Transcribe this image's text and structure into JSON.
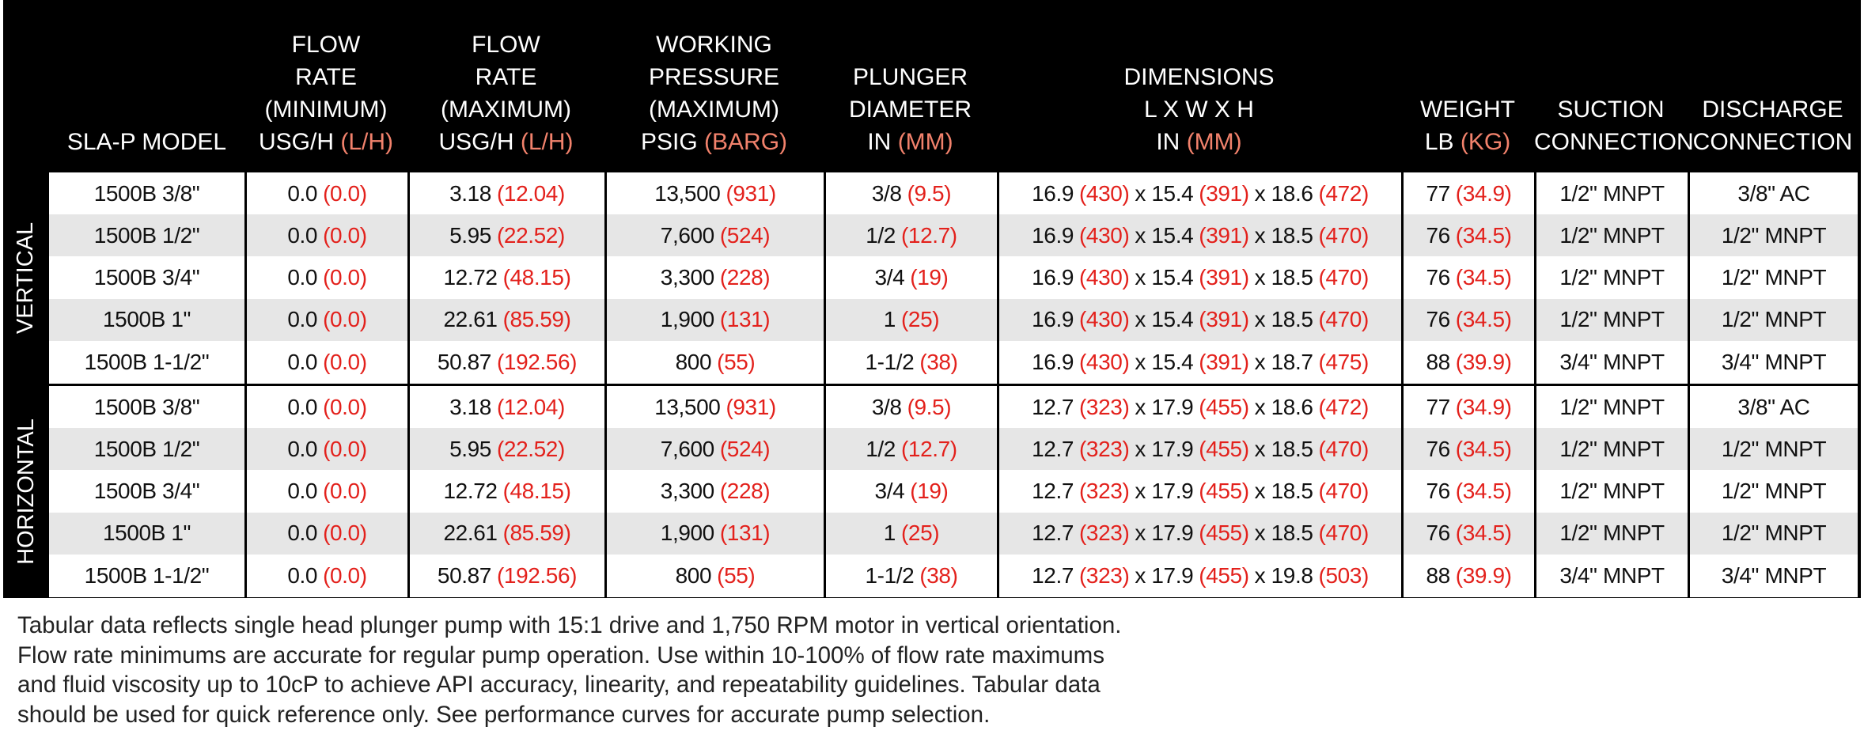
{
  "header": {
    "columns": [
      {
        "text": "SLA-P MODEL"
      },
      {
        "text": "FLOW\nRATE\n(MINIMUM)\nUSG/H",
        "unit": "(L/H)"
      },
      {
        "text": "FLOW\nRATE\n(MAXIMUM)\nUSG/H",
        "unit": "(L/H)"
      },
      {
        "text": "WORKING\nPRESSURE\n(MAXIMUM)\nPSIG",
        "unit": "(BARG)"
      },
      {
        "text": "PLUNGER\nDIAMETER\nIN",
        "unit": "(MM)"
      },
      {
        "text": "DIMENSIONS\nL X W X H\nIN",
        "unit": "(MM)"
      },
      {
        "text": "WEIGHT\nLB",
        "unit": "(KG)"
      },
      {
        "text": "SUCTION\nCONNECTION"
      },
      {
        "text": "DISCHARGE\nCONNECTION"
      }
    ]
  },
  "groups": [
    {
      "label": "VERTICAL",
      "rows": [
        [
          [
            "1500B 3/8\""
          ],
          [
            "0.0",
            "(0.0)"
          ],
          [
            "3.18",
            "(12.04)"
          ],
          [
            "13,500",
            "(931)"
          ],
          [
            "3/8",
            "(9.5)"
          ],
          [
            "16.9",
            "(430)",
            "x 15.4",
            "(391)",
            "x 18.6",
            "(472)"
          ],
          [
            "77",
            "(34.9)"
          ],
          [
            "1/2\" MNPT"
          ],
          [
            "3/8\" AC"
          ]
        ],
        [
          [
            "1500B 1/2\""
          ],
          [
            "0.0",
            "(0.0)"
          ],
          [
            "5.95",
            "(22.52)"
          ],
          [
            "7,600",
            "(524)"
          ],
          [
            "1/2",
            "(12.7)"
          ],
          [
            "16.9",
            "(430)",
            "x 15.4",
            "(391)",
            "x 18.5",
            "(470)"
          ],
          [
            "76",
            "(34.5)"
          ],
          [
            "1/2\" MNPT"
          ],
          [
            "1/2\" MNPT"
          ]
        ],
        [
          [
            "1500B 3/4\""
          ],
          [
            "0.0",
            "(0.0)"
          ],
          [
            "12.72",
            "(48.15)"
          ],
          [
            "3,300",
            "(228)"
          ],
          [
            "3/4",
            "(19)"
          ],
          [
            "16.9",
            "(430)",
            "x 15.4",
            "(391)",
            "x 18.5",
            "(470)"
          ],
          [
            "76",
            "(34.5)"
          ],
          [
            "1/2\" MNPT"
          ],
          [
            "1/2\" MNPT"
          ]
        ],
        [
          [
            "1500B 1\""
          ],
          [
            "0.0",
            "(0.0)"
          ],
          [
            "22.61",
            "(85.59)"
          ],
          [
            "1,900",
            "(131)"
          ],
          [
            "1",
            "(25)"
          ],
          [
            "16.9",
            "(430)",
            "x 15.4",
            "(391)",
            "x 18.5",
            "(470)"
          ],
          [
            "76",
            "(34.5)"
          ],
          [
            "1/2\" MNPT"
          ],
          [
            "1/2\" MNPT"
          ]
        ],
        [
          [
            "1500B 1-1/2\""
          ],
          [
            "0.0",
            "(0.0)"
          ],
          [
            "50.87",
            "(192.56)"
          ],
          [
            "800",
            "(55)"
          ],
          [
            "1-1/2",
            "(38)"
          ],
          [
            "16.9",
            "(430)",
            "x 15.4",
            "(391)",
            "x 18.7",
            "(475)"
          ],
          [
            "88",
            "(39.9)"
          ],
          [
            "3/4\" MNPT"
          ],
          [
            "3/4\" MNPT"
          ]
        ]
      ]
    },
    {
      "label": "HORIZONTAL",
      "rows": [
        [
          [
            "1500B 3/8\""
          ],
          [
            "0.0",
            "(0.0)"
          ],
          [
            "3.18",
            "(12.04)"
          ],
          [
            "13,500",
            "(931)"
          ],
          [
            "3/8",
            "(9.5)"
          ],
          [
            "12.7",
            "(323)",
            "x 17.9",
            "(455)",
            "x 18.6",
            "(472)"
          ],
          [
            "77",
            "(34.9)"
          ],
          [
            "1/2\" MNPT"
          ],
          [
            "3/8\" AC"
          ]
        ],
        [
          [
            "1500B 1/2\""
          ],
          [
            "0.0",
            "(0.0)"
          ],
          [
            "5.95",
            "(22.52)"
          ],
          [
            "7,600",
            "(524)"
          ],
          [
            "1/2",
            "(12.7)"
          ],
          [
            "12.7",
            "(323)",
            "x 17.9",
            "(455)",
            "x 18.5",
            "(470)"
          ],
          [
            "76",
            "(34.5)"
          ],
          [
            "1/2\" MNPT"
          ],
          [
            "1/2\" MNPT"
          ]
        ],
        [
          [
            "1500B 3/4\""
          ],
          [
            "0.0",
            "(0.0)"
          ],
          [
            "12.72",
            "(48.15)"
          ],
          [
            "3,300",
            "(228)"
          ],
          [
            "3/4",
            "(19)"
          ],
          [
            "12.7",
            "(323)",
            "x 17.9",
            "(455)",
            "x 18.5",
            "(470)"
          ],
          [
            "76",
            "(34.5)"
          ],
          [
            "1/2\" MNPT"
          ],
          [
            "1/2\" MNPT"
          ]
        ],
        [
          [
            "1500B 1\""
          ],
          [
            "0.0",
            "(0.0)"
          ],
          [
            "22.61",
            "(85.59)"
          ],
          [
            "1,900",
            "(131)"
          ],
          [
            "1",
            "(25)"
          ],
          [
            "12.7",
            "(323)",
            "x 17.9",
            "(455)",
            "x 18.5",
            "(470)"
          ],
          [
            "76",
            "(34.5)"
          ],
          [
            "1/2\" MNPT"
          ],
          [
            "1/2\" MNPT"
          ]
        ],
        [
          [
            "1500B 1-1/2\""
          ],
          [
            "0.0",
            "(0.0)"
          ],
          [
            "50.87",
            "(192.56)"
          ],
          [
            "800",
            "(55)"
          ],
          [
            "1-1/2",
            "(38)"
          ],
          [
            "12.7",
            "(323)",
            "x 17.9",
            "(455)",
            "x 19.8",
            "(503)"
          ],
          [
            "88",
            "(39.9)"
          ],
          [
            "3/4\" MNPT"
          ],
          [
            "3/4\" MNPT"
          ]
        ]
      ]
    }
  ],
  "note": {
    "lines": [
      "Tabular data reflects single head plunger pump with 15:1 drive and 1,750 RPM motor in vertical orientation.",
      "Flow rate minimums are accurate for regular pump operation. Use within 10-100% of flow rate maximums",
      "and fluid viscosity up to 10cP to achieve API accuracy, linearity, and repeatability guidelines. Tabular data",
      "should be used for quick reference only. See performance curves for accurate pump selection."
    ]
  }
}
